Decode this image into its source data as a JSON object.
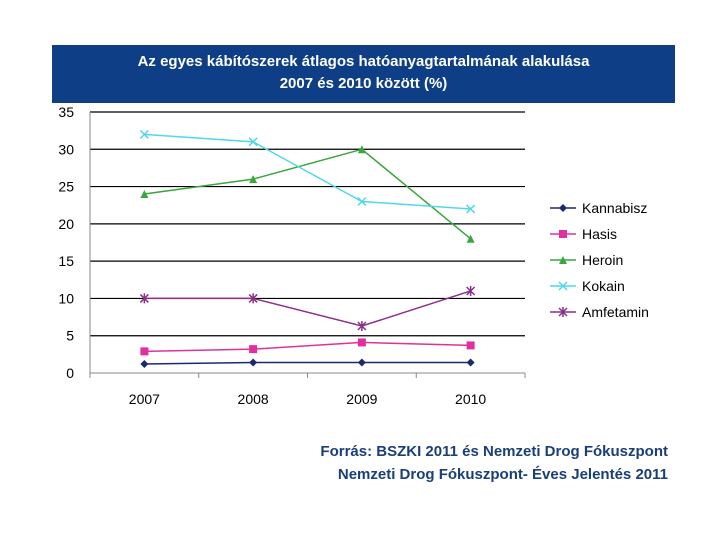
{
  "banner": {
    "title_line1": "Az egyes kábítószerek átlagos hatóanyagtartalmának alakulása",
    "title_line2": "2007 és 2010 között (%)"
  },
  "colors": {
    "banner_bg": "#0e3f86",
    "Kannabisz": "#1c2a6b",
    "Hasis": "#e0309f",
    "Heroin": "#39a63e",
    "Kokain": "#4fd8e8",
    "Amfetamin": "#8b2f8b"
  },
  "chart_data": {
    "type": "line",
    "title": "Az egyes kábítószerek átlagos hatóanyagtartalmának alakulása 2007 és 2010 között (%)",
    "categories": [
      "2007",
      "2008",
      "2009",
      "2010"
    ],
    "ylim": [
      0,
      35
    ],
    "yticks": [
      0,
      5,
      10,
      15,
      20,
      25,
      30,
      35
    ],
    "grid": true,
    "legend_position": "right",
    "series": [
      {
        "name": "Kannabisz",
        "marker": "diamond",
        "values": [
          1.2,
          1.4,
          1.4,
          1.4
        ]
      },
      {
        "name": "Hasis",
        "marker": "square",
        "values": [
          2.9,
          3.2,
          4.1,
          3.7
        ]
      },
      {
        "name": "Heroin",
        "marker": "triangle",
        "values": [
          24,
          26,
          30,
          18
        ]
      },
      {
        "name": "Kokain",
        "marker": "x",
        "values": [
          32,
          31,
          23,
          22
        ]
      },
      {
        "name": "Amfetamin",
        "marker": "star",
        "values": [
          10,
          10,
          6.3,
          11
        ]
      }
    ]
  },
  "source": {
    "line1": "Forrás: BSZKI 2011 és Nemzeti Drog Fókuszpont",
    "line2": "Nemzeti Drog Fókuszpont- Éves Jelentés 2011"
  }
}
